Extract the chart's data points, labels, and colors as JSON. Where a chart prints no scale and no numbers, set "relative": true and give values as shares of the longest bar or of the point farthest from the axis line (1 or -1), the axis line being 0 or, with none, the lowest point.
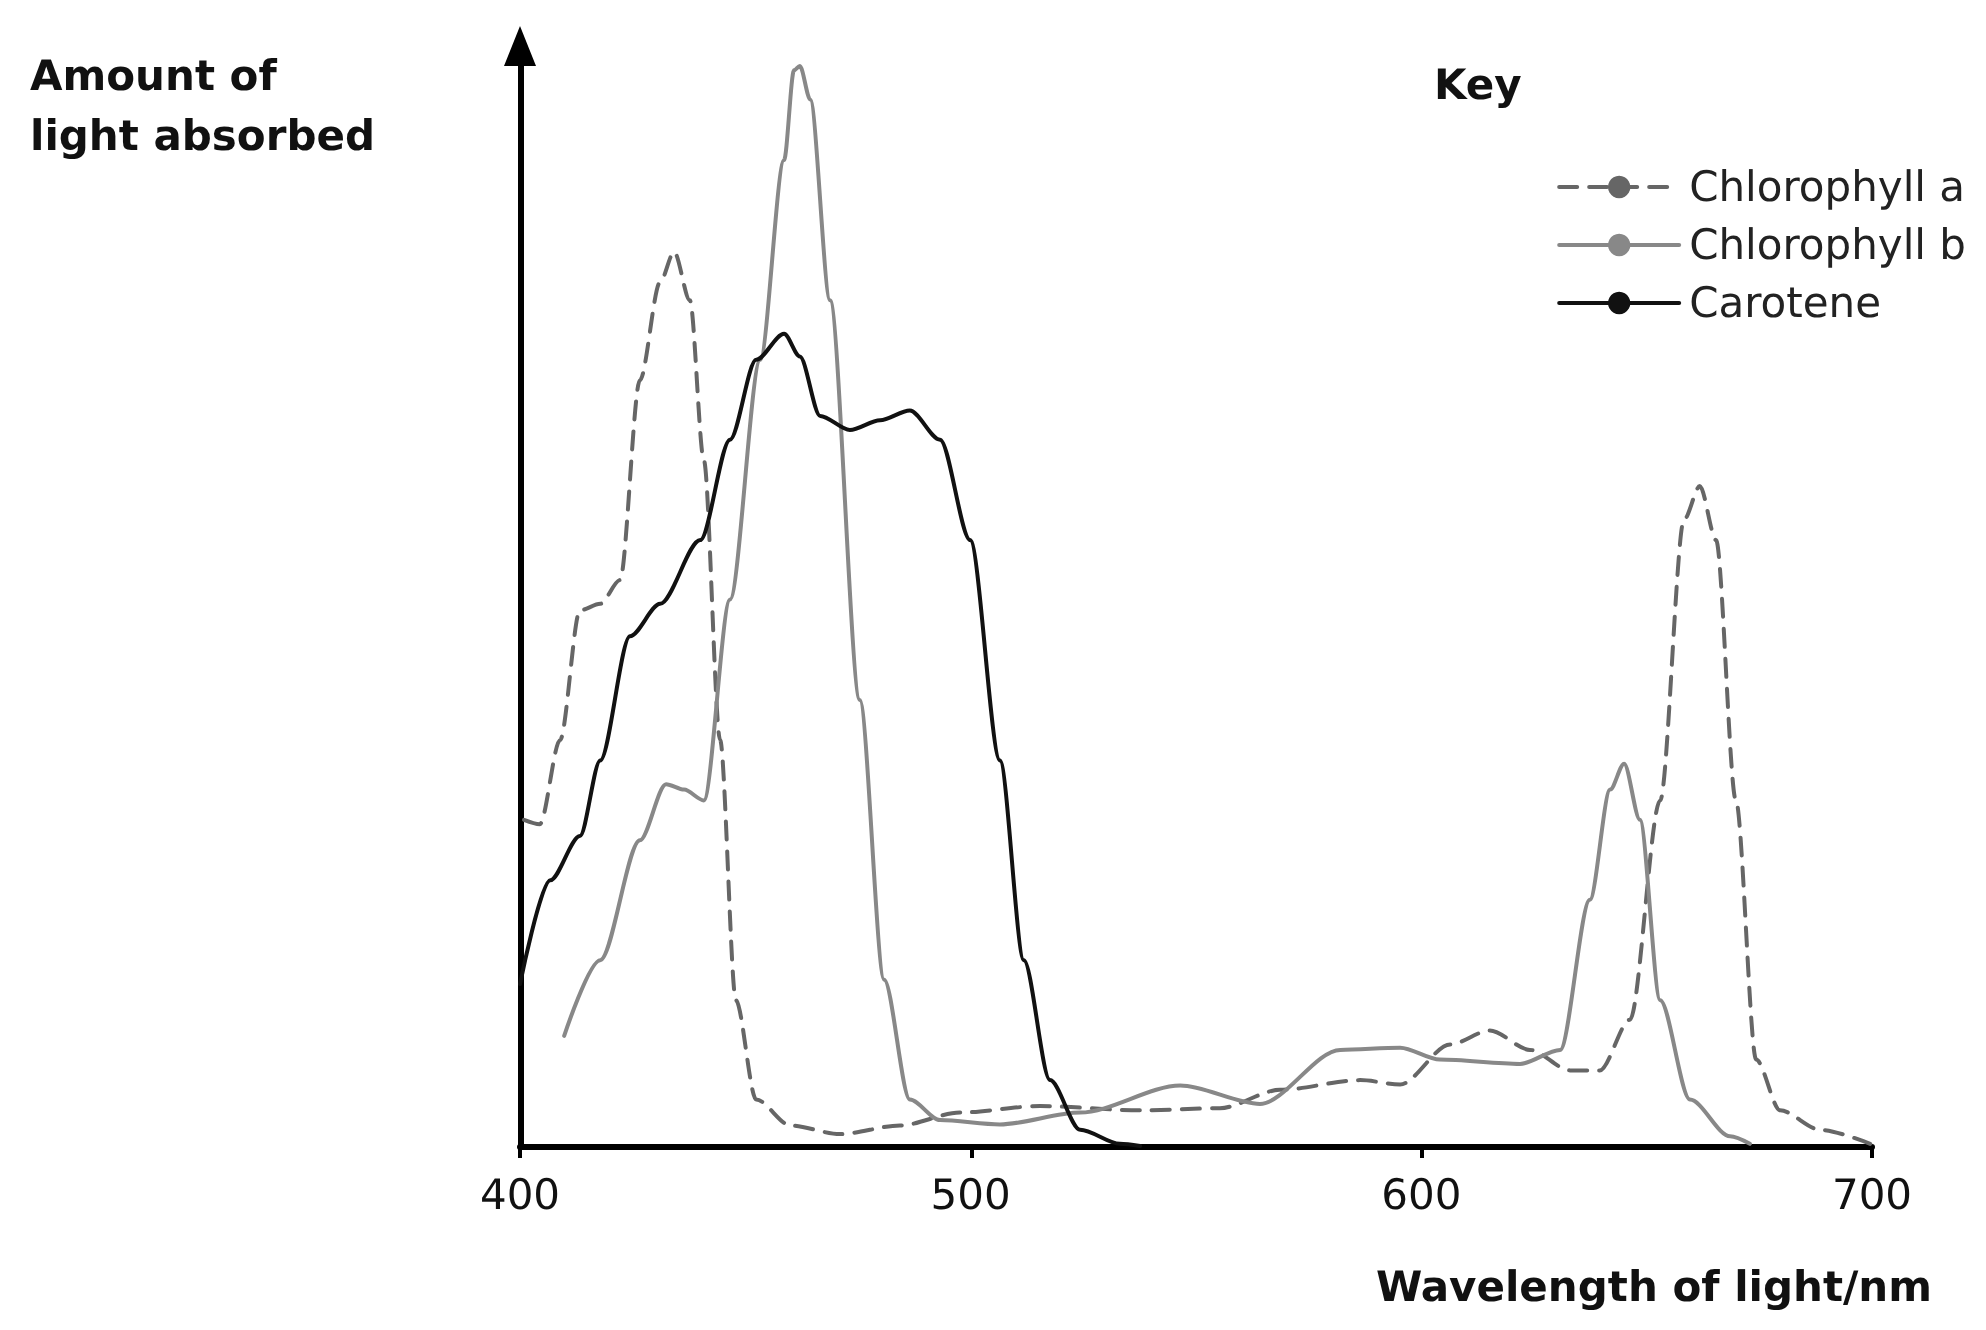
{
  "chart_data": {
    "type": "line",
    "relative": true,
    "xlabel": "Wavelength of light/nm",
    "ylabel": "Amount of light absorbed",
    "legend_title": "Key",
    "legend": "top right",
    "grid": false,
    "tick_labels": "x",
    "marker": "none",
    "xlim": [
      400,
      700
    ],
    "xticks": [
      400,
      500,
      600,
      700
    ],
    "series": [
      {
        "name": "Chlorophyll a",
        "color": "#666666",
        "line_style": "dashed",
        "x": [
          400.9,
          404.4,
          408.9,
          413.3,
          417.8,
          422.2,
          426.6,
          431.1,
          434.2,
          437.7,
          440.8,
          444.4,
          447.9,
          452.4,
          460,
          471,
          484.3,
          497.6,
          515.4,
          537.6,
          555.3,
          568.6,
          586.4,
          595.3,
          606.4,
          615.2,
          624.1,
          633,
          639.6,
          646.3,
          653,
          658.3,
          661.8,
          665.4,
          669.8,
          674.3,
          679.6,
          688.5,
          699.6
        ],
        "values": [
          0.302,
          0.298,
          0.376,
          0.496,
          0.502,
          0.524,
          0.709,
          0.8,
          0.828,
          0.783,
          0.635,
          0.376,
          0.135,
          0.043,
          0.019,
          0.011,
          0.019,
          0.031,
          0.037,
          0.033,
          0.035,
          0.052,
          0.061,
          0.057,
          0.094,
          0.107,
          0.089,
          0.07,
          0.07,
          0.117,
          0.32,
          0.58,
          0.611,
          0.561,
          0.32,
          0.08,
          0.033,
          0.015,
          0.002
        ]
      },
      {
        "name": "Chlorophyll b",
        "color": "#888888",
        "line_style": "solid",
        "x": [
          409.8,
          417.8,
          426.6,
          432.4,
          436.4,
          440.8,
          446.6,
          453.3,
          458.6,
          460.8,
          462.1,
          464.4,
          468.8,
          475.4,
          480.8,
          486.5,
          493.2,
          506.5,
          524.3,
          546.5,
          564.2,
          582,
          595.3,
          604.1,
          621.9,
          630.8,
          637.4,
          641.9,
          645,
          648.5,
          653,
          659.6,
          668.5,
          672.9
        ],
        "values": [
          0.102,
          0.172,
          0.283,
          0.335,
          0.33,
          0.32,
          0.506,
          0.728,
          0.913,
          0.996,
          1,
          0.969,
          0.783,
          0.413,
          0.154,
          0.043,
          0.024,
          0.02,
          0.031,
          0.056,
          0.039,
          0.089,
          0.091,
          0.08,
          0.076,
          0.089,
          0.228,
          0.33,
          0.354,
          0.302,
          0.135,
          0.043,
          0.009,
          0.002
        ]
      },
      {
        "name": "Carotene",
        "color": "#111111",
        "line_style": "solid",
        "x": [
          400,
          406.7,
          413.3,
          417.8,
          424.4,
          431.1,
          440,
          446.6,
          452.4,
          458.6,
          462.1,
          466.6,
          473.2,
          479.9,
          486.5,
          493.2,
          499.9,
          506.5,
          511.8,
          517.6,
          524.3,
          533.1,
          537.6
        ],
        "values": [
          0.15,
          0.246,
          0.287,
          0.357,
          0.472,
          0.502,
          0.561,
          0.654,
          0.728,
          0.752,
          0.731,
          0.676,
          0.663,
          0.672,
          0.681,
          0.654,
          0.561,
          0.357,
          0.172,
          0.061,
          0.015,
          0.002,
          0
        ]
      }
    ]
  }
}
